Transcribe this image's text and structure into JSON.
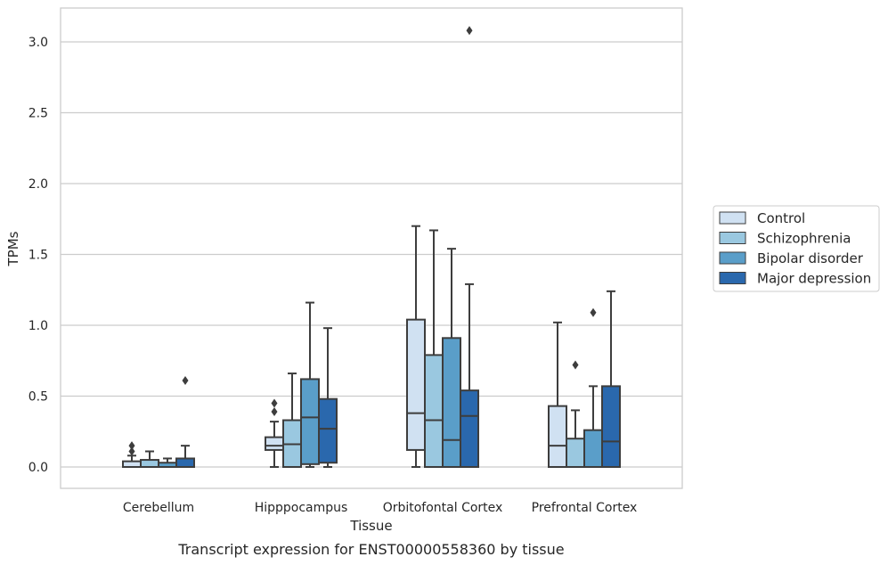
{
  "caption": "Transcript expression for ENST00000558360 by tissue",
  "chart_data": {
    "type": "boxplot",
    "xlabel": "Tissue",
    "ylabel": "TPMs",
    "ylim": [
      -0.15,
      3.25
    ],
    "yticks": [
      0.0,
      0.5,
      1.0,
      1.5,
      2.0,
      2.5,
      3.0
    ],
    "ytick_labels": [
      "0.0",
      "0.5",
      "1.0",
      "1.5",
      "2.0",
      "2.5",
      "3.0"
    ],
    "grid": "horizontal",
    "legend_position": "right",
    "categories": [
      "Cerebellum",
      "Hipppocampus",
      "Orbitofontal Cortex",
      "Prefrontal Cortex"
    ],
    "series": [
      {
        "name": "Control",
        "color": "#d0e1f2",
        "boxes": [
          {
            "whislo": 0.0,
            "q1": 0.0,
            "med": 0.0,
            "q3": 0.04,
            "whishi": 0.08,
            "fliers": [
              0.11,
              0.15
            ]
          },
          {
            "whislo": 0.0,
            "q1": 0.12,
            "med": 0.15,
            "q3": 0.21,
            "whishi": 0.32,
            "fliers": [
              0.39,
              0.45
            ]
          },
          {
            "whislo": 0.0,
            "q1": 0.12,
            "med": 0.38,
            "q3": 1.04,
            "whishi": 1.7,
            "fliers": []
          },
          {
            "whislo": 0.0,
            "q1": 0.0,
            "med": 0.15,
            "q3": 0.43,
            "whishi": 1.02,
            "fliers": []
          }
        ]
      },
      {
        "name": "Schizophrenia",
        "color": "#9ac8e0",
        "boxes": [
          {
            "whislo": 0.0,
            "q1": 0.0,
            "med": 0.0,
            "q3": 0.05,
            "whishi": 0.11,
            "fliers": []
          },
          {
            "whislo": 0.0,
            "q1": 0.0,
            "med": 0.16,
            "q3": 0.33,
            "whishi": 0.66,
            "fliers": []
          },
          {
            "whislo": 0.0,
            "q1": 0.0,
            "med": 0.33,
            "q3": 0.79,
            "whishi": 1.67,
            "fliers": []
          },
          {
            "whislo": 0.0,
            "q1": 0.0,
            "med": 0.0,
            "q3": 0.2,
            "whishi": 0.4,
            "fliers": [
              0.72
            ]
          }
        ]
      },
      {
        "name": "Bipolar disorder",
        "color": "#5a9ec9",
        "boxes": [
          {
            "whislo": 0.0,
            "q1": 0.0,
            "med": 0.0,
            "q3": 0.03,
            "whishi": 0.06,
            "fliers": []
          },
          {
            "whislo": 0.0,
            "q1": 0.02,
            "med": 0.35,
            "q3": 0.62,
            "whishi": 1.16,
            "fliers": []
          },
          {
            "whislo": 0.0,
            "q1": 0.0,
            "med": 0.19,
            "q3": 0.91,
            "whishi": 1.54,
            "fliers": []
          },
          {
            "whislo": 0.0,
            "q1": 0.0,
            "med": 0.0,
            "q3": 0.26,
            "whishi": 0.57,
            "fliers": [
              1.09
            ]
          }
        ]
      },
      {
        "name": "Major depression",
        "color": "#2a68ad",
        "boxes": [
          {
            "whislo": 0.0,
            "q1": 0.0,
            "med": 0.0,
            "q3": 0.06,
            "whishi": 0.15,
            "fliers": [
              0.61
            ]
          },
          {
            "whislo": 0.0,
            "q1": 0.03,
            "med": 0.27,
            "q3": 0.48,
            "whishi": 0.98,
            "fliers": []
          },
          {
            "whislo": 0.0,
            "q1": 0.0,
            "med": 0.36,
            "q3": 0.54,
            "whishi": 1.29,
            "fliers": [
              3.08
            ]
          },
          {
            "whislo": 0.0,
            "q1": 0.0,
            "med": 0.18,
            "q3": 0.57,
            "whishi": 1.24,
            "fliers": []
          }
        ]
      }
    ]
  }
}
